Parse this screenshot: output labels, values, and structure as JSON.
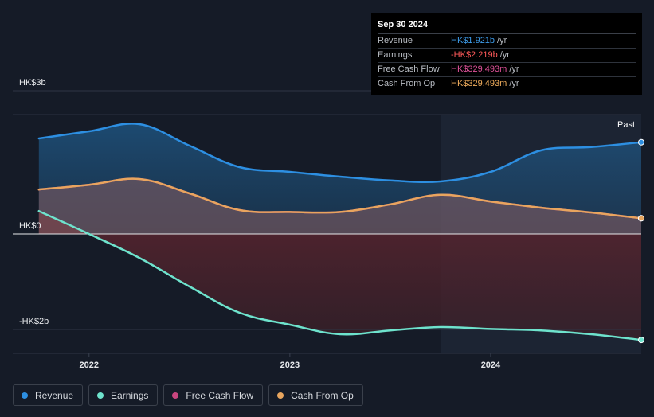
{
  "tooltip": {
    "date": "Sep 30 2024",
    "rows": [
      {
        "label": "Revenue",
        "value": "HK$1.921b",
        "unit": "/yr",
        "color": "#3d9be9"
      },
      {
        "label": "Earnings",
        "value": "-HK$2.219b",
        "unit": "/yr",
        "color": "#ff5a5a"
      },
      {
        "label": "Free Cash Flow",
        "value": "HK$329.493m",
        "unit": "/yr",
        "color": "#e0529a"
      },
      {
        "label": "Cash From Op",
        "value": "HK$329.493m",
        "unit": "/yr",
        "color": "#f0ad5c"
      }
    ]
  },
  "past_label": "Past",
  "legend": [
    {
      "label": "Revenue",
      "color": "#2d8fe2"
    },
    {
      "label": "Earnings",
      "color": "#6ee3cd"
    },
    {
      "label": "Free Cash Flow",
      "color": "#c8467f"
    },
    {
      "label": "Cash From Op",
      "color": "#e8a55e"
    }
  ],
  "chart_data": {
    "type": "line",
    "y_tick_labels": [
      {
        "value": 3,
        "label": "HK$3b"
      },
      {
        "value": 0,
        "label": "HK$0"
      },
      {
        "value": -2,
        "label": "-HK$2b"
      }
    ],
    "x_tick_labels": [
      {
        "value": 2022.0,
        "label": "2022"
      },
      {
        "value": 2023.0,
        "label": "2023"
      },
      {
        "value": 2024.0,
        "label": "2024"
      }
    ],
    "xlim": [
      2021.62,
      2024.75
    ],
    "ylim": [
      -2.5,
      2.5
    ],
    "past_start": 2023.75,
    "series": [
      {
        "name": "Revenue",
        "color": "#2d8fe2",
        "x": [
          2021.75,
          2022.0,
          2022.25,
          2022.5,
          2022.75,
          2023.0,
          2023.25,
          2023.5,
          2023.75,
          2024.0,
          2024.25,
          2024.5,
          2024.75
        ],
        "y": [
          2.0,
          2.15,
          2.3,
          1.85,
          1.4,
          1.3,
          1.2,
          1.12,
          1.1,
          1.3,
          1.75,
          1.82,
          1.921
        ]
      },
      {
        "name": "Earnings",
        "color": "#6ee3cd",
        "x": [
          2021.75,
          2022.0,
          2022.25,
          2022.5,
          2022.75,
          2023.0,
          2023.25,
          2023.5,
          2023.75,
          2024.0,
          2024.25,
          2024.5,
          2024.75
        ],
        "y": [
          0.48,
          0.0,
          -0.5,
          -1.1,
          -1.65,
          -1.9,
          -2.1,
          -2.02,
          -1.95,
          -1.99,
          -2.02,
          -2.1,
          -2.219
        ]
      },
      {
        "name": "Free Cash Flow",
        "color": "#c8467f",
        "x": [
          2021.75,
          2022.0,
          2022.25,
          2022.5,
          2022.75,
          2023.0,
          2023.25,
          2023.5,
          2023.75,
          2024.0,
          2024.25,
          2024.5,
          2024.75
        ],
        "y": [
          0.93,
          1.03,
          1.15,
          0.85,
          0.5,
          0.46,
          0.46,
          0.62,
          0.82,
          0.68,
          0.55,
          0.45,
          0.329
        ]
      },
      {
        "name": "Cash From Op",
        "color": "#e8a55e",
        "x": [
          2021.75,
          2022.0,
          2022.25,
          2022.5,
          2022.75,
          2023.0,
          2023.25,
          2023.5,
          2023.75,
          2024.0,
          2024.25,
          2024.5,
          2024.75
        ],
        "y": [
          0.93,
          1.03,
          1.15,
          0.85,
          0.5,
          0.46,
          0.46,
          0.62,
          0.82,
          0.68,
          0.55,
          0.45,
          0.329
        ]
      }
    ]
  }
}
